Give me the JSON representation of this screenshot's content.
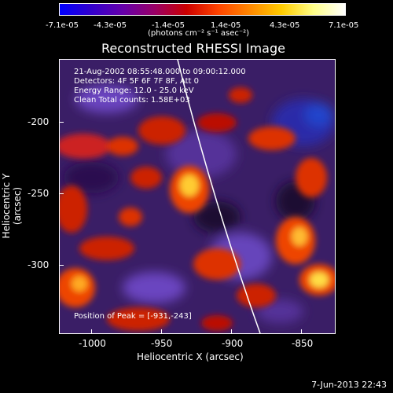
{
  "colorbar": {
    "ticks": [
      "-7.1e-05",
      "-4.3e-05",
      "-1.4e-05",
      "1.4e-05",
      "4.3e-05",
      "7.1e-05"
    ],
    "units": "(photons cm⁻² s⁻¹ asec⁻²)",
    "colors": [
      "#0000ff",
      "#3300cc",
      "#6600aa",
      "#990066",
      "#cc0000",
      "#ff4400",
      "#ff8800",
      "#ffcc00",
      "#ffff88",
      "#ffffff"
    ]
  },
  "plot": {
    "title": "Reconstructed RHESSI Image",
    "info_lines": [
      "21-Aug-2002 08:55:48.000 to 09:00:12.000",
      "Detectors: 4F 5F 6F 7F 8F, Att 0",
      "Energy Range: 12.0 - 25.0 keV",
      "Clean    Total counts: 1.58E+03"
    ],
    "peak_label": "Position of Peak = [-931,-243]",
    "xlabel": "Heliocentric X (arcsec)",
    "ylabel": "Heliocentric Y (arcsec)",
    "xticks": [
      "-1000",
      "-950",
      "-900",
      "-850"
    ],
    "yticks": [
      "-200",
      "-250",
      "-300"
    ]
  },
  "footer": {
    "timestamp": "7-Jun-2013 22:43"
  }
}
